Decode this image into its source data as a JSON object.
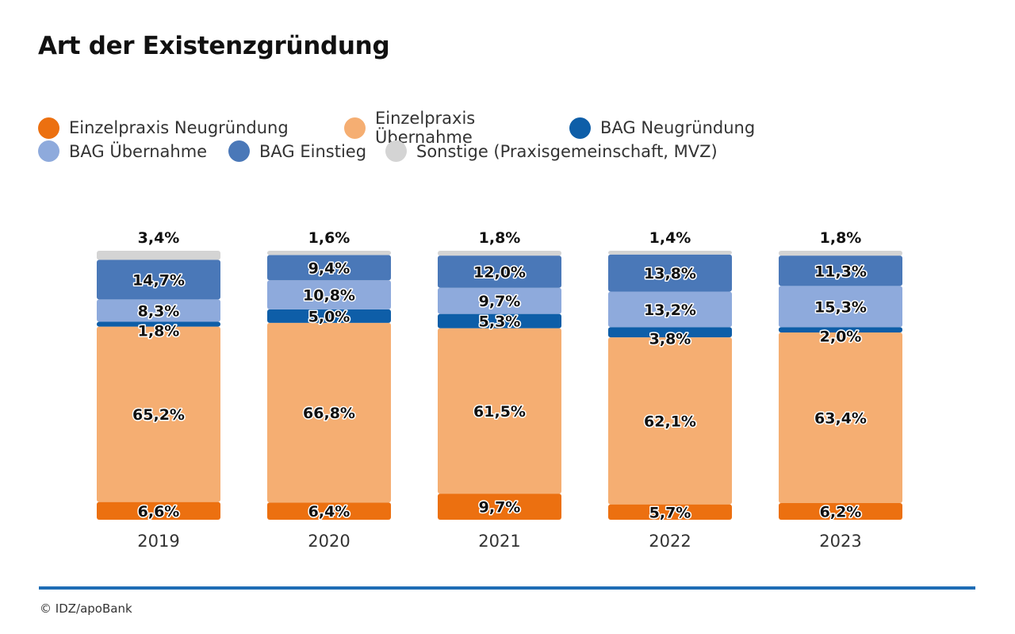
{
  "title": "Art der Existenzgründung",
  "source": "© IDZ/apoBank",
  "legend": [
    {
      "label": "Einzelpraxis Neugründung",
      "color": "#ec7010"
    },
    {
      "label": "Einzelpraxis Übernahme",
      "color": "#f5ae72"
    },
    {
      "label": "BAG Neugründung",
      "color": "#0e5ea8"
    },
    {
      "label": "BAG Übernahme",
      "color": "#8eaadc"
    },
    {
      "label": "BAG Einstieg",
      "color": "#4a78b8"
    },
    {
      "label": "Sonstige (Praxisgemeinschaft, MVZ)",
      "color": "#d4d4d4"
    }
  ],
  "chart_data": {
    "type": "bar",
    "stacked": true,
    "title": "Art der Existenzgründung",
    "categories": [
      "2019",
      "2020",
      "2021",
      "2022",
      "2023"
    ],
    "series": [
      {
        "name": "Einzelpraxis Neugründung",
        "values": [
          6.6,
          6.4,
          9.7,
          5.7,
          6.2
        ],
        "labels": [
          "6,6%",
          "6,4%",
          "9,7%",
          "5,7%",
          "6,2%"
        ]
      },
      {
        "name": "Einzelpraxis Übernahme",
        "values": [
          65.2,
          66.8,
          61.5,
          62.1,
          63.4
        ],
        "labels": [
          "65,2%",
          "66,8%",
          "61,5%",
          "62,1%",
          "63,4%"
        ]
      },
      {
        "name": "BAG Neugründung",
        "values": [
          1.8,
          5.0,
          5.3,
          3.8,
          2.0
        ],
        "labels": [
          "1,8%",
          "5,0%",
          "5,3%",
          "3,8%",
          "2,0%"
        ]
      },
      {
        "name": "BAG Übernahme",
        "values": [
          8.3,
          10.8,
          9.7,
          13.2,
          15.3
        ],
        "labels": [
          "8,3%",
          "10,8%",
          "9,7%",
          "13,2%",
          "15,3%"
        ]
      },
      {
        "name": "BAG Einstieg",
        "values": [
          14.7,
          9.4,
          12.0,
          13.8,
          11.3
        ],
        "labels": [
          "14,7%",
          "9,4%",
          "12,0%",
          "13,8%",
          "11,3%"
        ]
      },
      {
        "name": "Sonstige (Praxisgemeinschaft, MVZ)",
        "values": [
          3.4,
          1.6,
          1.8,
          1.4,
          1.8
        ],
        "labels": [
          "3,4%",
          "1,6%",
          "1,8%",
          "1,4%",
          "1,8%"
        ]
      }
    ],
    "ylim": [
      0,
      100
    ],
    "grid": false,
    "legend_position": "top-left"
  }
}
